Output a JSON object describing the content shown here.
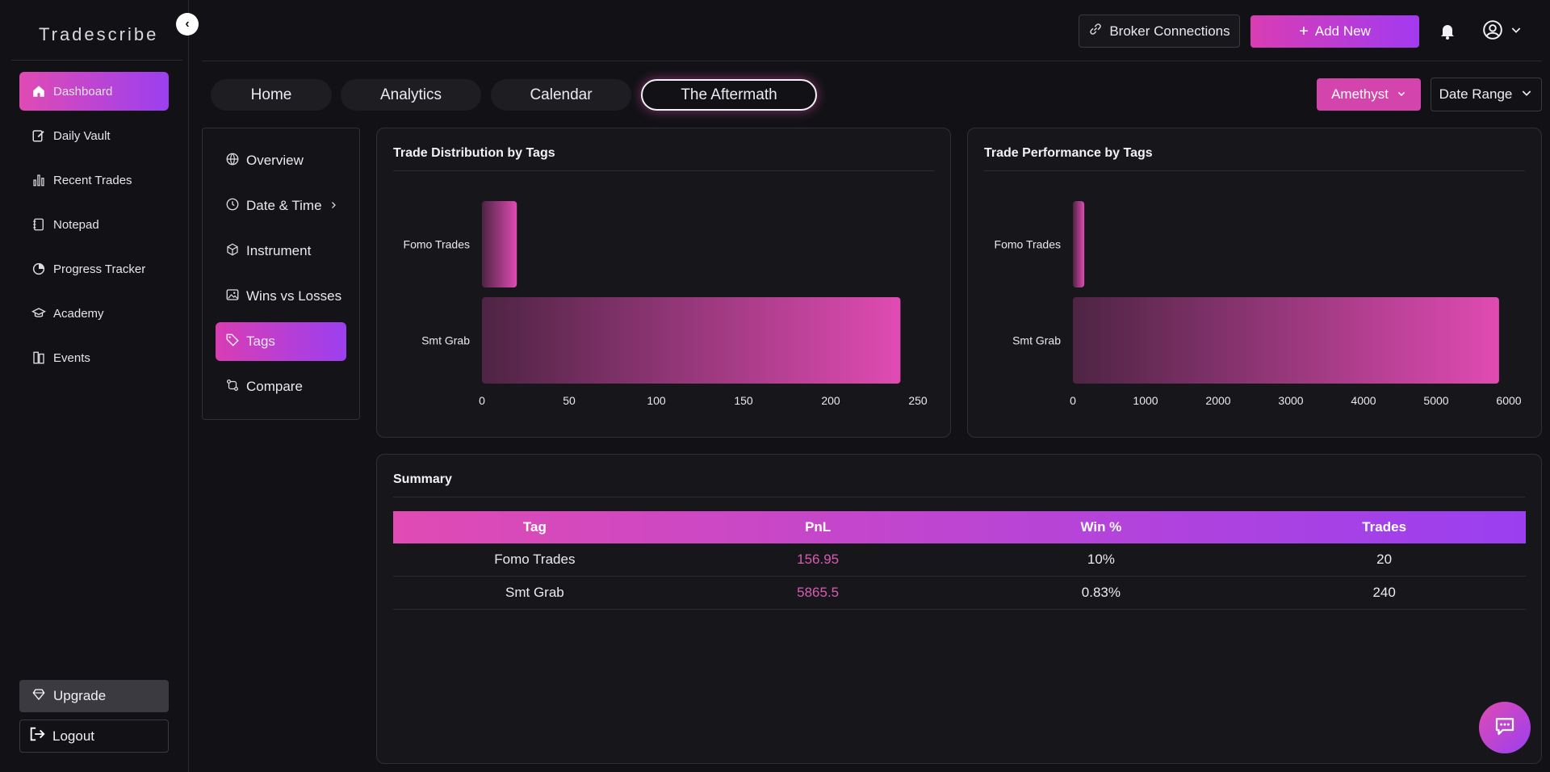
{
  "app": {
    "name": "Tradescribe"
  },
  "sidebar": {
    "items": [
      {
        "label": "Dashboard",
        "icon": "home-icon",
        "active": true
      },
      {
        "label": "Daily Vault",
        "icon": "edit-note-icon"
      },
      {
        "label": "Recent Trades",
        "icon": "bar-chart-icon"
      },
      {
        "label": "Notepad",
        "icon": "notepad-icon"
      },
      {
        "label": "Progress Tracker",
        "icon": "progress-icon"
      },
      {
        "label": "Academy",
        "icon": "graduation-cap-icon"
      },
      {
        "label": "Events",
        "icon": "events-icon"
      }
    ],
    "upgrade_label": "Upgrade",
    "logout_label": "Logout"
  },
  "header": {
    "broker_label": "Broker Connections",
    "add_new_label": "Add New"
  },
  "tabs": [
    {
      "label": "Home"
    },
    {
      "label": "Analytics"
    },
    {
      "label": "Calendar"
    },
    {
      "label": "The Aftermath",
      "active": true
    }
  ],
  "filters": {
    "account": "Amethyst",
    "date_range": "Date Range"
  },
  "submenu": [
    {
      "label": "Overview",
      "icon": "globe-icon"
    },
    {
      "label": "Date & Time",
      "icon": "clock-icon",
      "has_arrow": true
    },
    {
      "label": "Instrument",
      "icon": "box-icon"
    },
    {
      "label": "Wins vs Losses",
      "icon": "image-icon"
    },
    {
      "label": "Tags",
      "icon": "tag-icon",
      "active": true
    },
    {
      "label": "Compare",
      "icon": "compare-icon"
    }
  ],
  "chart_data": [
    {
      "type": "bar",
      "orientation": "horizontal",
      "title": "Trade Distribution by Tags",
      "categories": [
        "Fomo Trades",
        "Smt Grab"
      ],
      "values": [
        20,
        240
      ],
      "xlim": [
        0,
        250
      ],
      "xticks": [
        0,
        50,
        100,
        150,
        200,
        250
      ]
    },
    {
      "type": "bar",
      "orientation": "horizontal",
      "title": "Trade Performance by Tags",
      "categories": [
        "Fomo Trades",
        "Smt Grab"
      ],
      "values": [
        156.95,
        5865.5
      ],
      "xlim": [
        0,
        6000
      ],
      "xticks": [
        0,
        1000,
        2000,
        3000,
        4000,
        5000,
        6000
      ]
    }
  ],
  "summary": {
    "title": "Summary",
    "columns": [
      "Tag",
      "PnL",
      "Win %",
      "Trades"
    ],
    "rows": [
      [
        "Fomo Trades",
        "156.95",
        "10%",
        "20"
      ],
      [
        "Smt Grab",
        "5865.5",
        "0.83%",
        "240"
      ]
    ]
  },
  "colors": {
    "accent_start": "#e04bb3",
    "accent_end": "#9a3ff0",
    "pnl_text": "#d95ab6"
  }
}
